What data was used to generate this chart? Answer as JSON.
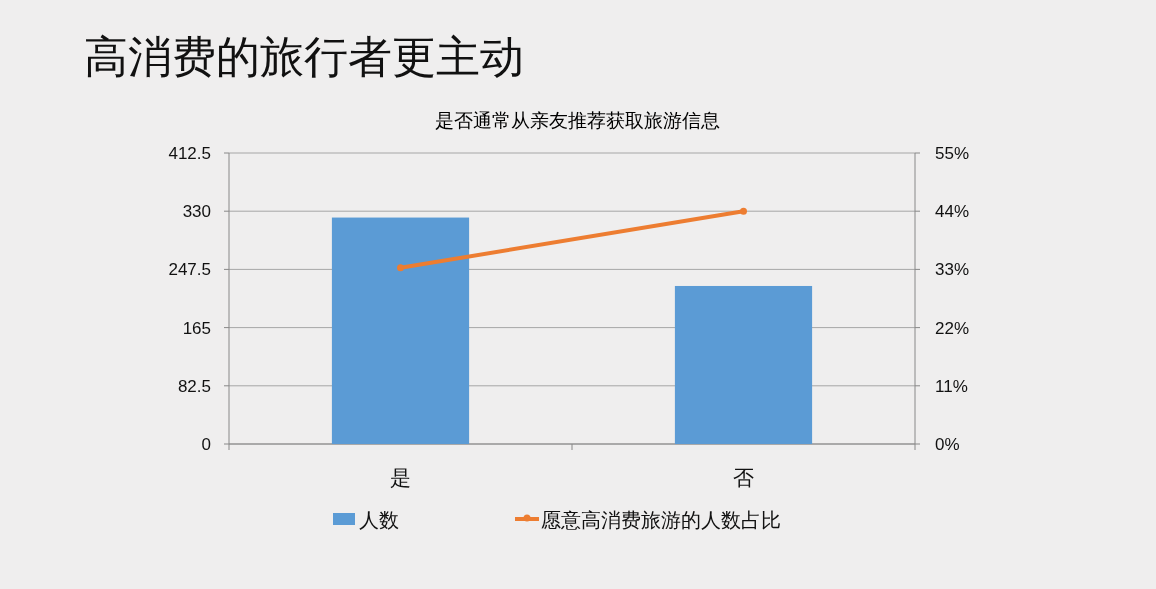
{
  "chart_data": {
    "type": "bar",
    "title": "高消费的旅行者更主动",
    "subtitle": "是否通常从亲友推荐获取旅游信息",
    "categories": [
      "是",
      "否"
    ],
    "series": [
      {
        "name": "人数",
        "type": "bar",
        "color": "#5b9bd5",
        "values": [
          321,
          224
        ]
      },
      {
        "name": "愿意高消费旅游的人数占比",
        "type": "line",
        "axis": "y2",
        "color": "#ed7d31",
        "values": [
          33.3,
          44
        ]
      }
    ],
    "ylim": [
      0,
      412.5
    ],
    "yticks": [
      0,
      82.5,
      165,
      247.5,
      330,
      412.5
    ],
    "y2lim": [
      0,
      55
    ],
    "y2ticks": [
      {
        "value": 0,
        "label": "0%"
      },
      {
        "value": 11,
        "label": "11%"
      },
      {
        "value": 22,
        "label": "22%"
      },
      {
        "value": 33,
        "label": "33%"
      },
      {
        "value": 44,
        "label": "44%"
      },
      {
        "value": 55,
        "label": "55%"
      }
    ],
    "grid": "y",
    "legend": "bottom",
    "marker": "circle"
  }
}
